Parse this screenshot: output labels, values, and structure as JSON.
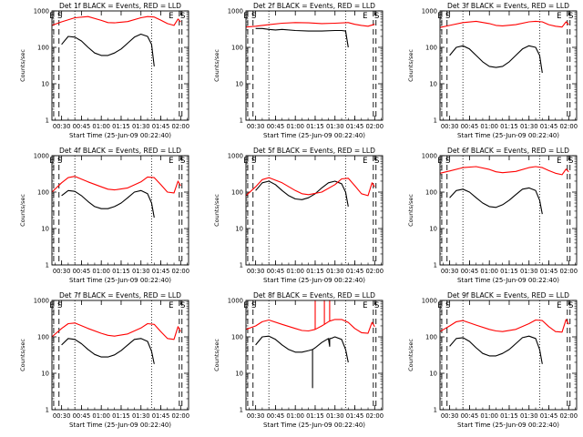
{
  "figure": {
    "colors": {
      "events": "#000000",
      "lld": "#ff0000",
      "axis": "#000000",
      "background": "#ffffff"
    },
    "x_ticks": [
      "00:30",
      "00:45",
      "01:00",
      "01:15",
      "01:30",
      "01:45",
      "02:00"
    ],
    "y_ticks": [
      "1",
      "10",
      "100",
      "1000"
    ]
  },
  "chart_data": [
    {
      "type": "line",
      "title": "Det 1f BLACK = Events, RED = LLD",
      "xlabel": "Start Time (25-Jun-09 00:22:40)",
      "ylabel": "Counts/sec",
      "xlim": [
        "00:22:40",
        "02:06:00"
      ],
      "ylim": [
        1,
        1000
      ],
      "yscale": "log",
      "markers": {
        "E_left": "E",
        "S_left": "S",
        "E_right": "E",
        "S_right": "S"
      },
      "series": [
        {
          "key": "events",
          "x": [
            "00:30",
            "00:35",
            "00:40",
            "00:45",
            "00:50",
            "00:55",
            "01:00",
            "01:05",
            "01:10",
            "01:15",
            "01:20",
            "01:25",
            "01:30",
            "01:35",
            "01:38",
            "01:40"
          ],
          "values": [
            120,
            200,
            190,
            150,
            100,
            70,
            60,
            60,
            70,
            90,
            130,
            190,
            230,
            200,
            120,
            30
          ]
        },
        {
          "key": "lld",
          "x": [
            "00:22:40",
            "00:30",
            "00:40",
            "00:50",
            "01:00",
            "01:05",
            "01:10",
            "01:20",
            "01:30",
            "01:35",
            "01:40",
            "01:45",
            "01:50",
            "01:55",
            "01:58",
            "02:00"
          ],
          "values": [
            400,
            500,
            650,
            700,
            550,
            480,
            470,
            510,
            650,
            700,
            680,
            560,
            450,
            400,
            600,
            500
          ]
        }
      ]
    },
    {
      "type": "line",
      "title": "Det 2f BLACK = Events, RED = LLD",
      "xlabel": "Start Time (25-Jun-09 00:22:40)",
      "ylabel": "Counts/sec",
      "xlim": [
        "00:22:40",
        "02:06:00"
      ],
      "ylim": [
        1,
        1000
      ],
      "yscale": "log",
      "markers": {
        "E_left": "E",
        "S_left": "S",
        "E_right": "E",
        "S_right": "S"
      },
      "series": [
        {
          "key": "events",
          "x": [
            "00:30",
            "00:35",
            "00:40",
            "00:45",
            "00:50",
            "01:00",
            "01:10",
            "01:20",
            "01:30",
            "01:35",
            "01:38",
            "01:40"
          ],
          "values": [
            330,
            330,
            310,
            300,
            310,
            290,
            280,
            280,
            290,
            290,
            280,
            100
          ]
        },
        {
          "key": "lld",
          "x": [
            "00:22:40",
            "00:30",
            "00:40",
            "00:50",
            "01:00",
            "01:10",
            "01:20",
            "01:30",
            "01:40",
            "01:45",
            "01:50",
            "01:55",
            "02:00"
          ],
          "values": [
            360,
            380,
            420,
            460,
            480,
            470,
            450,
            460,
            480,
            430,
            400,
            380,
            430
          ]
        }
      ]
    },
    {
      "type": "line",
      "title": "Det 3f BLACK = Events, RED = LLD",
      "xlabel": "Start Time (25-Jun-09 00:22:40)",
      "ylabel": "Counts/sec",
      "xlim": [
        "00:22:40",
        "02:06:00"
      ],
      "ylim": [
        1,
        1000
      ],
      "yscale": "log",
      "markers": {
        "E_left": "E",
        "S_left": "S",
        "E_right": "E",
        "S_right": "S"
      },
      "series": [
        {
          "key": "events",
          "x": [
            "00:30",
            "00:35",
            "00:40",
            "00:45",
            "00:50",
            "00:55",
            "01:00",
            "01:05",
            "01:10",
            "01:15",
            "01:20",
            "01:25",
            "01:30",
            "01:35",
            "01:38",
            "01:40"
          ],
          "values": [
            60,
            100,
            110,
            90,
            60,
            40,
            30,
            28,
            30,
            40,
            60,
            90,
            110,
            100,
            60,
            20
          ]
        },
        {
          "key": "lld",
          "x": [
            "00:22:40",
            "00:30",
            "00:40",
            "00:50",
            "01:00",
            "01:05",
            "01:10",
            "01:20",
            "01:30",
            "01:35",
            "01:40",
            "01:45",
            "01:50",
            "01:55",
            "01:58",
            "02:00"
          ],
          "values": [
            350,
            400,
            480,
            520,
            450,
            400,
            390,
            420,
            500,
            520,
            500,
            420,
            380,
            360,
            500,
            420
          ]
        }
      ]
    },
    {
      "type": "line",
      "title": "Det 4f BLACK = Events, RED = LLD",
      "xlabel": "Start Time (25-Jun-09 00:22:40)",
      "ylabel": "Counts/sec",
      "xlim": [
        "00:22:40",
        "02:06:00"
      ],
      "ylim": [
        1,
        1000
      ],
      "yscale": "log",
      "markers": {
        "E_left": "E",
        "S_left": "S",
        "E_right": "E",
        "S_right": "S"
      },
      "series": [
        {
          "key": "events",
          "x": [
            "00:30",
            "00:35",
            "00:40",
            "00:45",
            "00:50",
            "00:55",
            "01:00",
            "01:05",
            "01:10",
            "01:15",
            "01:20",
            "01:25",
            "01:30",
            "01:35",
            "01:38",
            "01:40"
          ],
          "values": [
            80,
            110,
            105,
            80,
            55,
            40,
            35,
            35,
            40,
            50,
            70,
            100,
            110,
            90,
            50,
            20
          ]
        },
        {
          "key": "lld",
          "x": [
            "00:22:40",
            "00:30",
            "00:35",
            "00:40",
            "00:50",
            "01:00",
            "01:05",
            "01:10",
            "01:20",
            "01:30",
            "01:35",
            "01:40",
            "01:45",
            "01:50",
            "01:55",
            "01:58",
            "02:00"
          ],
          "values": [
            100,
            180,
            250,
            270,
            190,
            140,
            120,
            115,
            130,
            190,
            260,
            250,
            160,
            100,
            95,
            200,
            150
          ]
        }
      ]
    },
    {
      "type": "line",
      "title": "Det 5f BLACK = Events, RED = LLD",
      "xlabel": "Start Time (25-Jun-09 00:22:40)",
      "ylabel": "Counts/sec",
      "xlim": [
        "00:22:40",
        "02:06:00"
      ],
      "ylim": [
        1,
        1000
      ],
      "yscale": "log",
      "markers": {
        "E_left": "E",
        "S_left": "S",
        "E_right": "E",
        "S_right": "S"
      },
      "series": [
        {
          "key": "events",
          "x": [
            "00:30",
            "00:35",
            "00:40",
            "00:45",
            "00:50",
            "00:55",
            "01:00",
            "01:05",
            "01:10",
            "01:15",
            "01:20",
            "01:25",
            "01:30",
            "01:35",
            "01:38",
            "01:40"
          ],
          "values": [
            110,
            180,
            200,
            160,
            110,
            80,
            65,
            62,
            70,
            90,
            130,
            180,
            200,
            170,
            100,
            40
          ]
        },
        {
          "key": "lld",
          "x": [
            "00:22:40",
            "00:30",
            "00:35",
            "00:40",
            "00:50",
            "01:00",
            "01:05",
            "01:10",
            "01:20",
            "01:30",
            "01:35",
            "01:40",
            "01:45",
            "01:50",
            "01:55",
            "01:58",
            "02:00"
          ],
          "values": [
            80,
            140,
            220,
            250,
            180,
            110,
            90,
            85,
            100,
            160,
            230,
            240,
            150,
            90,
            80,
            180,
            140
          ]
        }
      ]
    },
    {
      "type": "line",
      "title": "Det 6f BLACK = Events, RED = LLD",
      "xlabel": "Start Time (25-Jun-09 00:22:40)",
      "ylabel": "Counts/sec",
      "xlim": [
        "00:22:40",
        "02:06:00"
      ],
      "ylim": [
        1,
        1000
      ],
      "yscale": "log",
      "markers": {
        "E_left": "E",
        "S_left": "S",
        "E_right": "E",
        "S_right": "S"
      },
      "series": [
        {
          "key": "events",
          "x": [
            "00:30",
            "00:35",
            "00:40",
            "00:45",
            "00:50",
            "00:55",
            "01:00",
            "01:05",
            "01:10",
            "01:15",
            "01:20",
            "01:25",
            "01:30",
            "01:35",
            "01:38",
            "01:40"
          ],
          "values": [
            70,
            110,
            120,
            100,
            70,
            50,
            40,
            38,
            45,
            60,
            85,
            120,
            130,
            110,
            60,
            25
          ]
        },
        {
          "key": "lld",
          "x": [
            "00:22:40",
            "00:30",
            "00:40",
            "00:50",
            "01:00",
            "01:05",
            "01:10",
            "01:20",
            "01:30",
            "01:35",
            "01:40",
            "01:45",
            "01:50",
            "01:55",
            "01:58",
            "02:00"
          ],
          "values": [
            330,
            380,
            470,
            500,
            420,
            360,
            340,
            370,
            470,
            500,
            470,
            390,
            330,
            300,
            430,
            360
          ]
        }
      ]
    },
    {
      "type": "line",
      "title": "Det 7f BLACK = Events, RED = LLD",
      "xlabel": "Start Time (25-Jun-09 00:22:40)",
      "ylabel": "Counts/sec",
      "xlim": [
        "00:22:40",
        "02:06:00"
      ],
      "ylim": [
        1,
        1000
      ],
      "yscale": "log",
      "markers": {
        "E_left": "E",
        "S_left": "S",
        "E_right": "E",
        "S_right": "S"
      },
      "series": [
        {
          "key": "events",
          "x": [
            "00:30",
            "00:35",
            "00:40",
            "00:45",
            "00:50",
            "00:55",
            "01:00",
            "01:05",
            "01:10",
            "01:15",
            "01:20",
            "01:25",
            "01:30",
            "01:35",
            "01:38",
            "01:40"
          ],
          "values": [
            60,
            90,
            85,
            65,
            45,
            33,
            28,
            28,
            32,
            42,
            60,
            85,
            90,
            75,
            40,
            18
          ]
        },
        {
          "key": "lld",
          "x": [
            "00:22:40",
            "00:30",
            "00:35",
            "00:40",
            "00:50",
            "01:00",
            "01:05",
            "01:10",
            "01:20",
            "01:30",
            "01:35",
            "01:40",
            "01:45",
            "01:50",
            "01:55",
            "01:58",
            "02:00"
          ],
          "values": [
            100,
            170,
            230,
            240,
            170,
            125,
            110,
            105,
            120,
            175,
            230,
            220,
            140,
            90,
            85,
            190,
            140
          ]
        }
      ]
    },
    {
      "type": "line",
      "title": "Det 8f BLACK = Events, RED = LLD",
      "xlabel": "Start Time (25-Jun-09 00:22:40)",
      "ylabel": "Counts/sec",
      "xlim": [
        "00:22:40",
        "02:06:00"
      ],
      "ylim": [
        1,
        1000
      ],
      "yscale": "log",
      "markers": {
        "E_left": "E",
        "S_left": "S",
        "E_right": "E",
        "S_right": "S"
      },
      "series": [
        {
          "key": "events",
          "x": [
            "00:30",
            "00:35",
            "00:40",
            "00:45",
            "00:50",
            "00:55",
            "01:00",
            "01:05",
            "01:10",
            "01:13",
            "01:13",
            "01:13",
            "01:15",
            "01:20",
            "01:25",
            "01:26",
            "01:26",
            "01:27",
            "01:30",
            "01:35",
            "01:38",
            "01:40"
          ],
          "values": [
            60,
            100,
            105,
            85,
            60,
            45,
            38,
            38,
            42,
            45,
            4,
            45,
            50,
            70,
            90,
            55,
            90,
            90,
            100,
            85,
            45,
            20
          ]
        },
        {
          "key": "lld",
          "x": [
            "00:22:40",
            "00:30",
            "00:35",
            "00:40",
            "00:50",
            "01:00",
            "01:05",
            "01:10",
            "01:15",
            "01:15",
            "01:15",
            "01:20",
            "01:22",
            "01:22",
            "01:22",
            "01:25",
            "01:26",
            "01:26",
            "01:26",
            "01:30",
            "01:35",
            "01:40",
            "01:45",
            "01:50",
            "01:55",
            "01:58",
            "02:00"
          ],
          "values": [
            160,
            200,
            260,
            290,
            220,
            170,
            150,
            145,
            160,
            1000,
            160,
            200,
            220,
            1000,
            220,
            260,
            270,
            1000,
            270,
            300,
            300,
            250,
            170,
            130,
            125,
            250,
            190
          ]
        }
      ]
    },
    {
      "type": "line",
      "title": "Det 9f BLACK = Events, RED = LLD",
      "xlabel": "Start Time (25-Jun-09 00:22:40)",
      "ylabel": "Counts/sec",
      "xlim": [
        "00:22:40",
        "02:06:00"
      ],
      "ylim": [
        1,
        1000
      ],
      "yscale": "log",
      "markers": {
        "E_left": "E",
        "S_left": "S",
        "E_right": "E",
        "S_right": "S"
      },
      "series": [
        {
          "key": "events",
          "x": [
            "00:30",
            "00:35",
            "00:40",
            "00:45",
            "00:50",
            "00:55",
            "01:00",
            "01:05",
            "01:10",
            "01:15",
            "01:20",
            "01:25",
            "01:30",
            "01:35",
            "01:38",
            "01:40"
          ],
          "values": [
            55,
            90,
            95,
            75,
            50,
            35,
            30,
            30,
            35,
            45,
            65,
            95,
            105,
            90,
            45,
            18
          ]
        },
        {
          "key": "lld",
          "x": [
            "00:22:40",
            "00:30",
            "00:35",
            "00:40",
            "00:50",
            "01:00",
            "01:05",
            "01:10",
            "01:20",
            "01:30",
            "01:35",
            "01:40",
            "01:45",
            "01:50",
            "01:55",
            "01:58",
            "02:00"
          ],
          "values": [
            140,
            200,
            260,
            280,
            210,
            160,
            145,
            140,
            160,
            230,
            290,
            280,
            190,
            140,
            135,
            300,
            220
          ]
        }
      ]
    }
  ]
}
